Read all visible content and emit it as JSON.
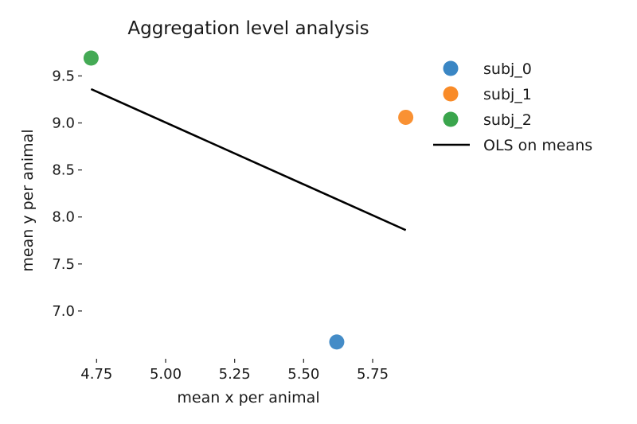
{
  "chart_data": {
    "type": "scatter",
    "title": "Aggregation level analysis",
    "xlabel": "mean x per animal",
    "ylabel": "mean y per animal",
    "xlim": [
      4.7,
      5.9
    ],
    "ylim": [
      6.5,
      9.8
    ],
    "xticks": [
      4.75,
      5.0,
      5.25,
      5.5,
      5.75
    ],
    "xtick_labels": [
      "4.75",
      "5.00",
      "5.25",
      "5.50",
      "5.75"
    ],
    "yticks": [
      7.0,
      7.5,
      8.0,
      8.5,
      9.0,
      9.5
    ],
    "ytick_labels": [
      "7.0",
      "7.5",
      "8.0",
      "8.5",
      "9.0",
      "9.5"
    ],
    "grid": false,
    "legend_position": "top-right outside",
    "series": [
      {
        "name": "subj_0",
        "color": "#3a86c4",
        "points": [
          {
            "x": 5.62,
            "y": 6.67
          }
        ]
      },
      {
        "name": "subj_1",
        "color": "#f98b28",
        "points": [
          {
            "x": 5.87,
            "y": 9.06
          }
        ]
      },
      {
        "name": "subj_2",
        "color": "#3aa54c",
        "points": [
          {
            "x": 4.73,
            "y": 9.69
          }
        ]
      }
    ],
    "fit_line": {
      "name": "OLS on means",
      "color": "#000000",
      "x": [
        4.73,
        5.87
      ],
      "y": [
        9.36,
        7.86
      ]
    }
  }
}
